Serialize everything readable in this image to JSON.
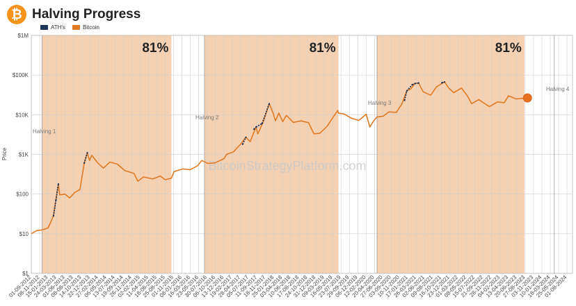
{
  "header": {
    "title": "Halving Progress",
    "logo_glyph": "₿"
  },
  "legend": [
    {
      "label": "ATH's",
      "color": "#1d3557"
    },
    {
      "label": "Bitcoin",
      "color": "#e07a24"
    }
  ],
  "watermark": "BitcoinStrategyPlatform.com",
  "colors": {
    "shade": "#f5c9a3",
    "line": "#e07a24",
    "ath": "#1d3557",
    "marker": "#e8701f"
  },
  "chart_data": {
    "type": "line",
    "yscale": "log",
    "ylabel": "Price",
    "ylim": [
      1,
      1000000
    ],
    "y_ticks": [
      {
        "v": 1,
        "label": "$1"
      },
      {
        "v": 10,
        "label": "$10"
      },
      {
        "v": 100,
        "label": "$100"
      },
      {
        "v": 1000,
        "label": "$1K"
      },
      {
        "v": 10000,
        "label": "$10K"
      },
      {
        "v": 100000,
        "label": "$100K"
      },
      {
        "v": 1000000,
        "label": "$1M"
      }
    ],
    "xlim": [
      "2012-09-01",
      "2024-09-15"
    ],
    "x_ticks": [
      "01-09-2012",
      "08-11-2012",
      "15-01-2013",
      "24-03-2013",
      "01-06-2013",
      "08-08-2013",
      "14-10-2013",
      "22-12-2013",
      "27-02-2014",
      "06-05-2014",
      "13-07-2014",
      "19-09-2014",
      "26-11-2014",
      "02-02-2015",
      "11-04-2015",
      "18-06-2015",
      "25-08-2015",
      "01-11-2015",
      "08-01-2016",
      "16-03-2016",
      "23-05-2016",
      "30-07-2016",
      "06-10-2016",
      "13-12-2016",
      "19-02-2017",
      "28-04-2017",
      "05-07-2017",
      "11-09-2017",
      "18-11-2017",
      "25-01-2018",
      "03-04-2018",
      "10-06-2018",
      "17-08-2018",
      "24-10-2018",
      "31-12-2018",
      "09-03-2019",
      "16-05-2019",
      "23-07-2019",
      "29-09-2019",
      "06-12-2019",
      "12-02-2020",
      "20-04-2020",
      "27-06-2020",
      "03-09-2020",
      "10-11-2020",
      "17-01-2021",
      "26-03-2021",
      "02-06-2021",
      "09-08-2021",
      "16-10-2021",
      "23-12-2021",
      "01-03-2022",
      "08-05-2022",
      "15-07-2022",
      "21-09-2022",
      "28-11-2022",
      "04-02-2023",
      "13-04-2023",
      "20-06-2023",
      "27-08-2023",
      "03-11-2023",
      "10-01-2024",
      "18-03-2024",
      "25-05-2024",
      "01-08-2024"
    ],
    "halvings": [
      {
        "label": "Halving 1",
        "date": "2012-11-28"
      },
      {
        "label": "Halving 2",
        "date": "2016-07-09"
      },
      {
        "label": "Halving 3",
        "date": "2020-05-11"
      },
      {
        "label": "Halving 4",
        "date": "2024-04-20"
      }
    ],
    "bands": [
      {
        "start": "2012-11-28",
        "end": "2015-10-14",
        "label": "81%"
      },
      {
        "start": "2016-07-09",
        "end": "2019-07-03",
        "label": "81%"
      },
      {
        "start": "2020-05-11",
        "end": "2023-08-21",
        "label": "81%"
      }
    ],
    "series": [
      {
        "name": "Bitcoin",
        "x": [
          "2012-09-01",
          "2012-10-15",
          "2012-12-01",
          "2013-01-15",
          "2013-02-28",
          "2013-04-09",
          "2013-04-20",
          "2013-06-01",
          "2013-07-10",
          "2013-08-20",
          "2013-10-01",
          "2013-11-05",
          "2013-11-30",
          "2013-12-18",
          "2014-01-05",
          "2014-02-25",
          "2014-04-10",
          "2014-06-01",
          "2014-08-01",
          "2014-10-01",
          "2014-12-15",
          "2015-01-14",
          "2015-03-01",
          "2015-05-15",
          "2015-07-15",
          "2015-08-25",
          "2015-10-14",
          "2015-11-05",
          "2016-01-15",
          "2016-03-15",
          "2016-05-15",
          "2016-06-16",
          "2016-07-09",
          "2016-08-03",
          "2016-10-01",
          "2016-12-15",
          "2017-01-04",
          "2017-03-01",
          "2017-05-01",
          "2017-06-10",
          "2017-07-15",
          "2017-09-01",
          "2017-09-15",
          "2017-11-01",
          "2017-12-17",
          "2018-01-15",
          "2018-02-06",
          "2018-03-05",
          "2018-04-06",
          "2018-05-05",
          "2018-07-01",
          "2018-09-01",
          "2018-11-01",
          "2018-12-15",
          "2019-02-01",
          "2019-04-01",
          "2019-05-15",
          "2019-06-26",
          "2019-07-03",
          "2019-08-15",
          "2019-10-15",
          "2019-12-15",
          "2020-02-13",
          "2020-03-13",
          "2020-04-15",
          "2020-05-11",
          "2020-07-01",
          "2020-08-15",
          "2020-10-15",
          "2020-11-30",
          "2021-01-08",
          "2021-02-10",
          "2021-03-14",
          "2021-04-14",
          "2021-05-20",
          "2021-07-20",
          "2021-09-07",
          "2021-10-20",
          "2021-11-10",
          "2021-12-15",
          "2022-01-24",
          "2022-03-28",
          "2022-05-15",
          "2022-06-18",
          "2022-08-15",
          "2022-11-09",
          "2023-01-15",
          "2023-03-10",
          "2023-04-14",
          "2023-06-15",
          "2023-08-21",
          "2023-09-15"
        ],
        "y": [
          10,
          12,
          12.5,
          14,
          28,
          180,
          95,
          100,
          80,
          110,
          130,
          600,
          1100,
          700,
          950,
          600,
          450,
          640,
          570,
          390,
          330,
          210,
          270,
          240,
          285,
          230,
          250,
          370,
          430,
          410,
          520,
          700,
          650,
          590,
          610,
          780,
          1000,
          1150,
          1850,
          2700,
          2100,
          4900,
          3300,
          6900,
          19000,
          11500,
          7000,
          11000,
          6700,
          9700,
          6400,
          7000,
          6300,
          3300,
          3400,
          5100,
          8200,
          12800,
          11000,
          10500,
          8200,
          7200,
          10300,
          4900,
          7100,
          8800,
          9200,
          11800,
          11500,
          19000,
          40000,
          45000,
          61000,
          63000,
          38000,
          31000,
          51000,
          61000,
          67000,
          47000,
          36000,
          47000,
          30000,
          19000,
          24000,
          16000,
          21000,
          20000,
          30000,
          25000,
          26000,
          26500
        ]
      },
      {
        "name": "ATH's",
        "x": [
          "2013-02-28",
          "2013-03-20",
          "2013-04-09",
          "2013-11-05",
          "2013-11-30",
          "2017-05-15",
          "2017-06-10",
          "2017-08-15",
          "2017-09-01",
          "2017-10-20",
          "2017-12-17",
          "2020-12-20",
          "2021-01-08",
          "2021-02-21",
          "2021-03-14",
          "2021-04-14",
          "2021-10-20",
          "2021-11-10"
        ],
        "y": [
          28,
          70,
          180,
          600,
          1100,
          1800,
          2700,
          4300,
          4900,
          6000,
          19000,
          23000,
          40000,
          57000,
          61000,
          63000,
          64000,
          67000
        ]
      }
    ],
    "current": {
      "date": "2023-09-15",
      "value": 26500
    }
  }
}
